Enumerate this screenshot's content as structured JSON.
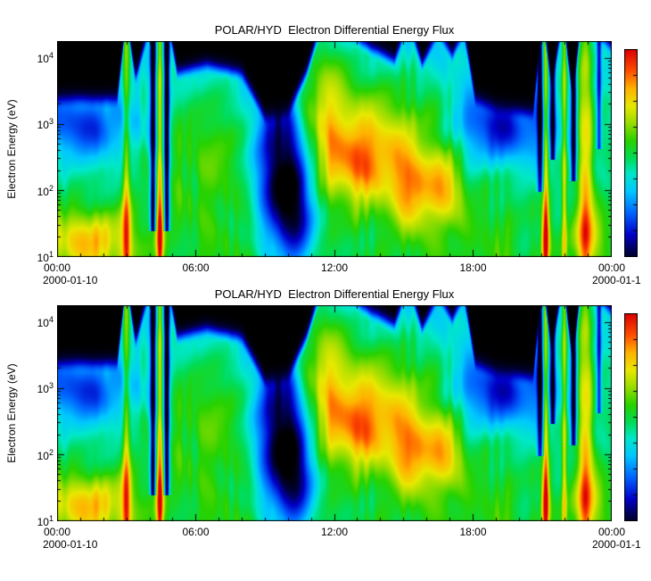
{
  "chart_data": {
    "type": "heatmap",
    "panels": [
      {
        "title": "POLAR/HYD  Electron Differential Energy Flux",
        "ylabel": "Electron Energy (eV)",
        "xtick_labels": [
          "00:00",
          "06:00",
          "12:00",
          "18:00",
          "00:00"
        ],
        "date_left": "2000-01-10",
        "date_right": "2000-01-1"
      },
      {
        "title": "POLAR/HYD  Electron Differential Energy Flux",
        "ylabel": "Electron Energy (eV)",
        "xtick_labels": [
          "00:00",
          "06:00",
          "12:00",
          "18:00",
          "00:00"
        ],
        "date_left": "2000-01-10",
        "date_right": "2000-01-1"
      }
    ],
    "x_range_hours": [
      0,
      24
    ],
    "x_major_ticks_hours": [
      0,
      6,
      12,
      18,
      24
    ],
    "x_minor_tick_step_hours": 1,
    "y_scale": "log",
    "y_range_ev": [
      10,
      17800
    ],
    "y_log_range": [
      1,
      4.25
    ],
    "ytick_exponents": [
      1,
      2,
      3,
      4
    ],
    "grid": false,
    "legend": "colorbar-right",
    "colorbar": {
      "orientation": "vertical",
      "ticks": 9,
      "top_color": "#dc0000",
      "bottom_color": "#000046"
    },
    "colormap_stops": [
      [
        0.0,
        "#000000"
      ],
      [
        0.07,
        "#000046"
      ],
      [
        0.15,
        "#0000c8"
      ],
      [
        0.25,
        "#0064ff"
      ],
      [
        0.35,
        "#00c8ff"
      ],
      [
        0.43,
        "#00e8c8"
      ],
      [
        0.5,
        "#00dc5a"
      ],
      [
        0.58,
        "#28d200"
      ],
      [
        0.66,
        "#96dc00"
      ],
      [
        0.74,
        "#e8e800"
      ],
      [
        0.82,
        "#ffb400"
      ],
      [
        0.9,
        "#ff5000"
      ],
      [
        1.0,
        "#dc0000"
      ]
    ],
    "field": {
      "comment_units": "t in hours 0-24, y is normalized log-energy 0(10eV)-1(~18keV), v is normalized flux 0-1",
      "base": [
        0.54,
        -0.18
      ],
      "mottle": [
        0.045,
        0.03
      ],
      "falloff": 0.06,
      "cutoff": [
        [
          0,
          0.68
        ],
        [
          2.6,
          0.68
        ],
        [
          3.0,
          1.05
        ],
        [
          3.4,
          0.78
        ],
        [
          4.1,
          1.05
        ],
        [
          4.8,
          1.05
        ],
        [
          5.2,
          0.8
        ],
        [
          6.5,
          0.84
        ],
        [
          8.0,
          0.8
        ],
        [
          9.0,
          0.6
        ],
        [
          10.0,
          0.62
        ],
        [
          10.8,
          0.8
        ],
        [
          11.5,
          1.05
        ],
        [
          12.5,
          1.0
        ],
        [
          13.5,
          0.92
        ],
        [
          14.6,
          0.86
        ],
        [
          15.2,
          1.05
        ],
        [
          15.8,
          0.84
        ],
        [
          16.5,
          1.0
        ],
        [
          17.1,
          0.88
        ],
        [
          17.6,
          1.0
        ],
        [
          18.1,
          0.68
        ],
        [
          19.0,
          0.64
        ],
        [
          20.6,
          0.62
        ],
        [
          21.0,
          1.05
        ],
        [
          21.4,
          0.75
        ],
        [
          21.9,
          1.05
        ],
        [
          22.3,
          0.7
        ],
        [
          22.7,
          1.05
        ],
        [
          23.3,
          1.0
        ],
        [
          24.0,
          0.92
        ]
      ],
      "blobs": [
        [
          1.5,
          0.08,
          1.3,
          0.1,
          0.28
        ],
        [
          1.2,
          0.6,
          1.6,
          0.1,
          -0.22
        ],
        [
          6.8,
          0.55,
          1.8,
          0.2,
          0.1
        ],
        [
          7.5,
          0.3,
          2.5,
          0.25,
          0.05
        ],
        [
          9.7,
          0.42,
          0.9,
          0.28,
          -0.5
        ],
        [
          10.3,
          0.2,
          0.6,
          0.2,
          -0.25
        ],
        [
          11.4,
          0.78,
          0.8,
          0.18,
          0.22
        ],
        [
          12.9,
          0.52,
          1.9,
          0.2,
          0.3
        ],
        [
          13.2,
          0.42,
          1.3,
          0.12,
          0.15
        ],
        [
          15.4,
          0.3,
          0.55,
          0.13,
          0.3
        ],
        [
          16.8,
          0.32,
          0.5,
          0.13,
          0.28
        ],
        [
          15.9,
          0.65,
          1.5,
          0.18,
          0.08
        ],
        [
          19.2,
          0.6,
          1.5,
          0.12,
          -0.28
        ],
        [
          19.0,
          0.25,
          1.5,
          0.2,
          0.05
        ],
        [
          23.0,
          0.1,
          0.5,
          0.1,
          0.25
        ],
        [
          22.9,
          0.6,
          0.5,
          0.3,
          0.1
        ],
        [
          3.0,
          0.15,
          0.2,
          0.15,
          0.15
        ],
        [
          4.45,
          0.12,
          0.15,
          0.12,
          0.25
        ],
        [
          21.15,
          0.1,
          0.15,
          0.1,
          0.3
        ]
      ],
      "stripes": [
        [
          3.0,
          0.1,
          0.22,
          0,
          1.1
        ],
        [
          4.15,
          0.08,
          -0.5,
          0.12,
          1.1
        ],
        [
          4.45,
          0.08,
          0.28,
          0,
          1.1
        ],
        [
          4.75,
          0.08,
          -0.5,
          0.12,
          1.1
        ],
        [
          20.9,
          0.08,
          -0.35,
          0.3,
          1.1
        ],
        [
          21.15,
          0.08,
          0.3,
          0,
          1.1
        ],
        [
          21.45,
          0.08,
          -0.4,
          0.45,
          1.1
        ],
        [
          21.95,
          0.07,
          0.25,
          0,
          1.1
        ],
        [
          22.35,
          0.08,
          -0.45,
          0.35,
          1.1
        ],
        [
          22.85,
          0.18,
          0.22,
          0,
          1.1
        ],
        [
          23.45,
          0.07,
          -0.3,
          0.5,
          1.1
        ]
      ]
    }
  }
}
